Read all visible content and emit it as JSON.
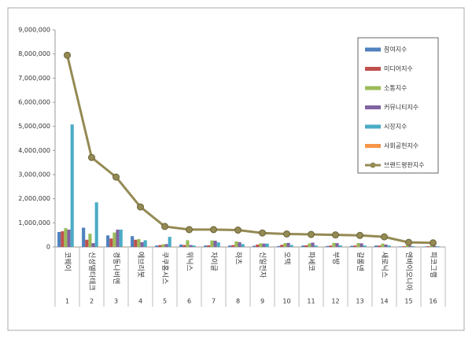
{
  "chart_data": {
    "type": "bar",
    "categories": [
      "코웨이",
      "신성델타테크",
      "경동나비엔",
      "에브리봇",
      "쿠쿠홈시스",
      "위닉스",
      "자이글",
      "하츠",
      "신일전자",
      "오텍",
      "파세코",
      "부방",
      "갈롱넨",
      "새로닉스",
      "엔바이오니아",
      "피코그램"
    ],
    "ranks": [
      "1",
      "2",
      "3",
      "4",
      "5",
      "6",
      "7",
      "8",
      "9",
      "10",
      "11",
      "12",
      "13",
      "14",
      "15",
      "16"
    ],
    "ylim": [
      0,
      9000000
    ],
    "yticks": [
      0,
      {
        "value": 1000000,
        "label": "1,000,000"
      },
      {
        "value": 2000000,
        "label": "2,000,000"
      },
      {
        "value": 3000000,
        "label": "3,000,000"
      },
      {
        "value": 4000000,
        "label": "4,000,000"
      },
      {
        "value": 5000000,
        "label": "5,000,000"
      },
      {
        "value": 6000000,
        "label": "6,000,000"
      },
      {
        "value": 7000000,
        "label": "7,000,000"
      },
      {
        "value": 8000000,
        "label": "8,000,000"
      },
      {
        "value": 9000000,
        "label": "9,000,000"
      }
    ],
    "series": [
      {
        "name": "참여지수",
        "color": "#4f81bd",
        "values": [
          620000,
          800000,
          480000,
          450000,
          60000,
          100000,
          60000,
          60000,
          50000,
          40000,
          60000,
          40000,
          50000,
          60000,
          20000,
          20000
        ]
      },
      {
        "name": "미디어지수",
        "color": "#c0504d",
        "values": [
          650000,
          300000,
          350000,
          300000,
          80000,
          80000,
          70000,
          80000,
          100000,
          90000,
          70000,
          60000,
          60000,
          60000,
          30000,
          30000
        ]
      },
      {
        "name": "소통지수",
        "color": "#9bbb59",
        "values": [
          780000,
          550000,
          600000,
          330000,
          110000,
          280000,
          270000,
          230000,
          150000,
          160000,
          150000,
          170000,
          160000,
          140000,
          60000,
          50000
        ]
      },
      {
        "name": "커뮤니티지수",
        "color": "#8064a2",
        "values": [
          720000,
          160000,
          720000,
          200000,
          120000,
          80000,
          260000,
          200000,
          140000,
          170000,
          180000,
          160000,
          150000,
          100000,
          50000,
          40000
        ]
      },
      {
        "name": "시장지수",
        "color": "#4bacc6",
        "values": [
          5080000,
          1850000,
          720000,
          280000,
          420000,
          60000,
          190000,
          120000,
          140000,
          80000,
          60000,
          70000,
          60000,
          60000,
          30000,
          30000
        ]
      },
      {
        "name": "사회공헌지수",
        "color": "#f79646",
        "values": [
          10000,
          20000,
          20000,
          10000,
          10000,
          5000,
          5000,
          5000,
          5000,
          5000,
          5000,
          5000,
          5000,
          5000,
          5000,
          5000
        ]
      },
      {
        "name": "브랜드평판지수",
        "color": "#948a54",
        "type": "line",
        "values": [
          7950000,
          3710000,
          2900000,
          1660000,
          850000,
          720000,
          720000,
          700000,
          580000,
          540000,
          520000,
          500000,
          480000,
          420000,
          190000,
          170000
        ]
      }
    ]
  }
}
